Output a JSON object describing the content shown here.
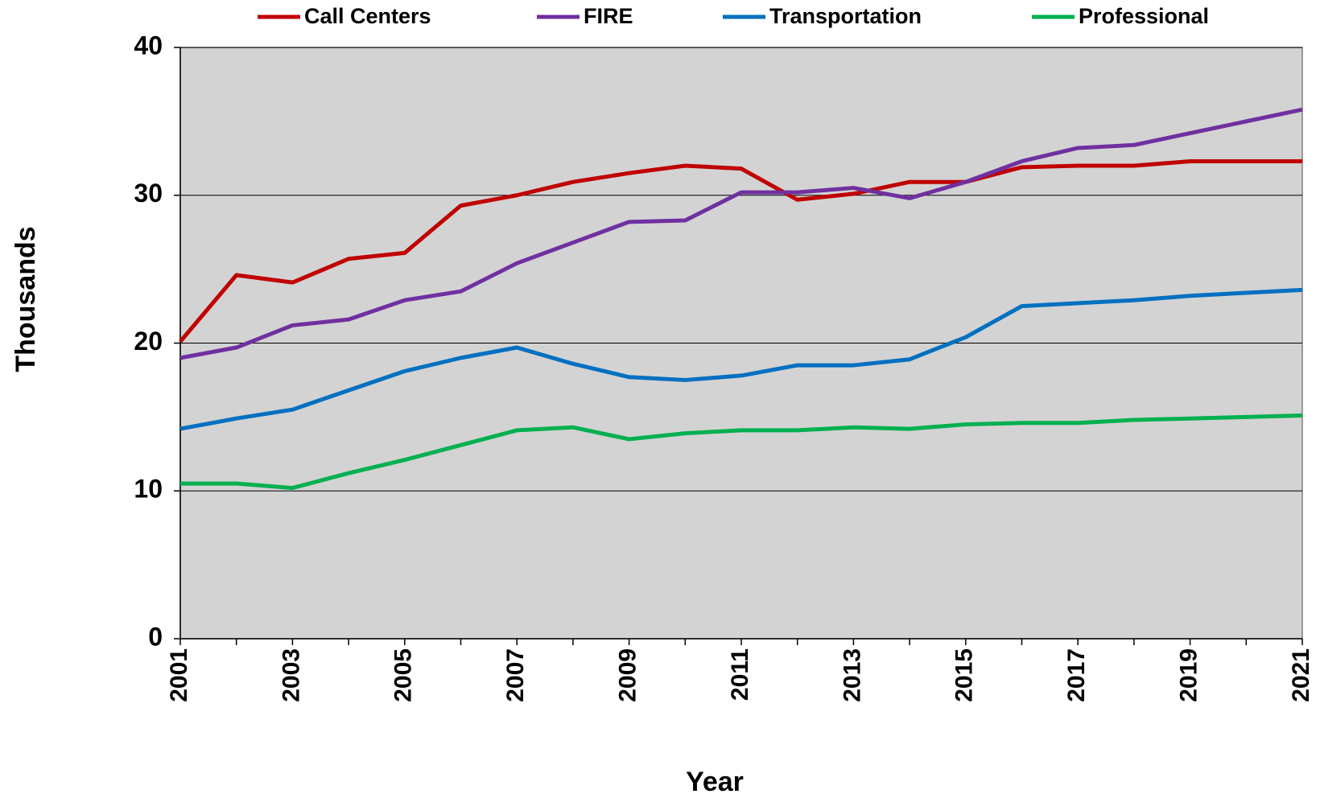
{
  "chart_data": {
    "type": "line",
    "x_label": "Year",
    "y_label": "Thousands",
    "x": [
      2001,
      2002,
      2003,
      2004,
      2005,
      2006,
      2007,
      2008,
      2009,
      2010,
      2011,
      2012,
      2013,
      2014,
      2015,
      2016,
      2017,
      2018,
      2019,
      2020,
      2021
    ],
    "series": [
      {
        "name": "Call Centers",
        "color": "#c00000",
        "values": [
          20.1,
          24.6,
          24.1,
          25.7,
          26.1,
          29.3,
          30.0,
          30.9,
          31.5,
          32.0,
          31.8,
          29.7,
          30.1,
          30.9,
          30.9,
          31.9,
          32.0,
          32.0,
          32.3,
          32.3,
          32.3
        ]
      },
      {
        "name": "FIRE",
        "color": "#7030a0",
        "values": [
          19.0,
          19.7,
          21.2,
          21.6,
          22.9,
          23.5,
          25.4,
          26.8,
          28.2,
          28.3,
          30.2,
          30.2,
          30.5,
          29.8,
          30.9,
          32.3,
          33.2,
          33.4,
          34.2,
          35.0,
          35.8
        ]
      },
      {
        "name": "Transportation",
        "color": "#0070c0",
        "values": [
          14.2,
          14.9,
          15.5,
          16.8,
          18.1,
          19.0,
          19.7,
          18.6,
          17.7,
          17.5,
          17.8,
          18.5,
          18.5,
          18.9,
          20.4,
          22.5,
          22.7,
          22.9,
          23.2,
          23.4,
          23.6
        ]
      },
      {
        "name": "Professional",
        "color": "#00b050",
        "values": [
          10.5,
          10.5,
          10.2,
          11.2,
          12.1,
          13.1,
          14.1,
          14.3,
          13.5,
          13.9,
          14.1,
          14.1,
          14.3,
          14.2,
          14.5,
          14.6,
          14.6,
          14.8,
          14.9,
          15.0,
          15.1
        ]
      }
    ],
    "xlim": [
      2001,
      2021
    ],
    "xticks": [
      2001,
      2003,
      2005,
      2007,
      2009,
      2011,
      2013,
      2015,
      2017,
      2019,
      2021
    ],
    "ylim": [
      0,
      40
    ],
    "yticks": [
      0,
      10,
      20,
      30,
      40
    ],
    "grid": true,
    "legend": "top",
    "plot_background": "#d3d3d3"
  }
}
